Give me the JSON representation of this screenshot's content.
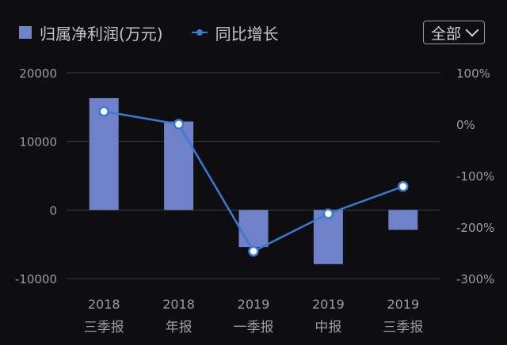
{
  "legend": {
    "bar_label": "归属净利润(万元)",
    "line_label": "同比增长"
  },
  "filter": {
    "label": "全部"
  },
  "colors": {
    "bar": "#6f82c9",
    "line": "#3a79d4",
    "grid": "#3a3a3e",
    "text": "#9c9ca2"
  },
  "chart_data": {
    "type": "bar+line",
    "categories": [
      [
        "2018",
        "三季报"
      ],
      [
        "2018",
        "年报"
      ],
      [
        "2019",
        "一季报"
      ],
      [
        "2019",
        "中报"
      ],
      [
        "2019",
        "三季报"
      ]
    ],
    "series": [
      {
        "name": "归属净利润(万元)",
        "type": "bar",
        "axis": "left",
        "values": [
          16300,
          12900,
          -5400,
          -7900,
          -2900
        ]
      },
      {
        "name": "同比增长",
        "type": "line",
        "axis": "right",
        "values": [
          25,
          0,
          -247,
          -174,
          -121
        ]
      }
    ],
    "left_axis": {
      "min": -10000,
      "max": 20000,
      "ticks": [
        "20000",
        "10000",
        "0",
        "-10000"
      ],
      "tick_values": [
        20000,
        10000,
        0,
        -10000
      ]
    },
    "right_axis": {
      "min": -300,
      "max": 100,
      "ticks": [
        "100%",
        "0%",
        "-100%",
        "-200%",
        "-300%"
      ],
      "tick_values": [
        100,
        0,
        -100,
        -200,
        -300
      ]
    },
    "grid": true,
    "legend_position": "top-left"
  }
}
